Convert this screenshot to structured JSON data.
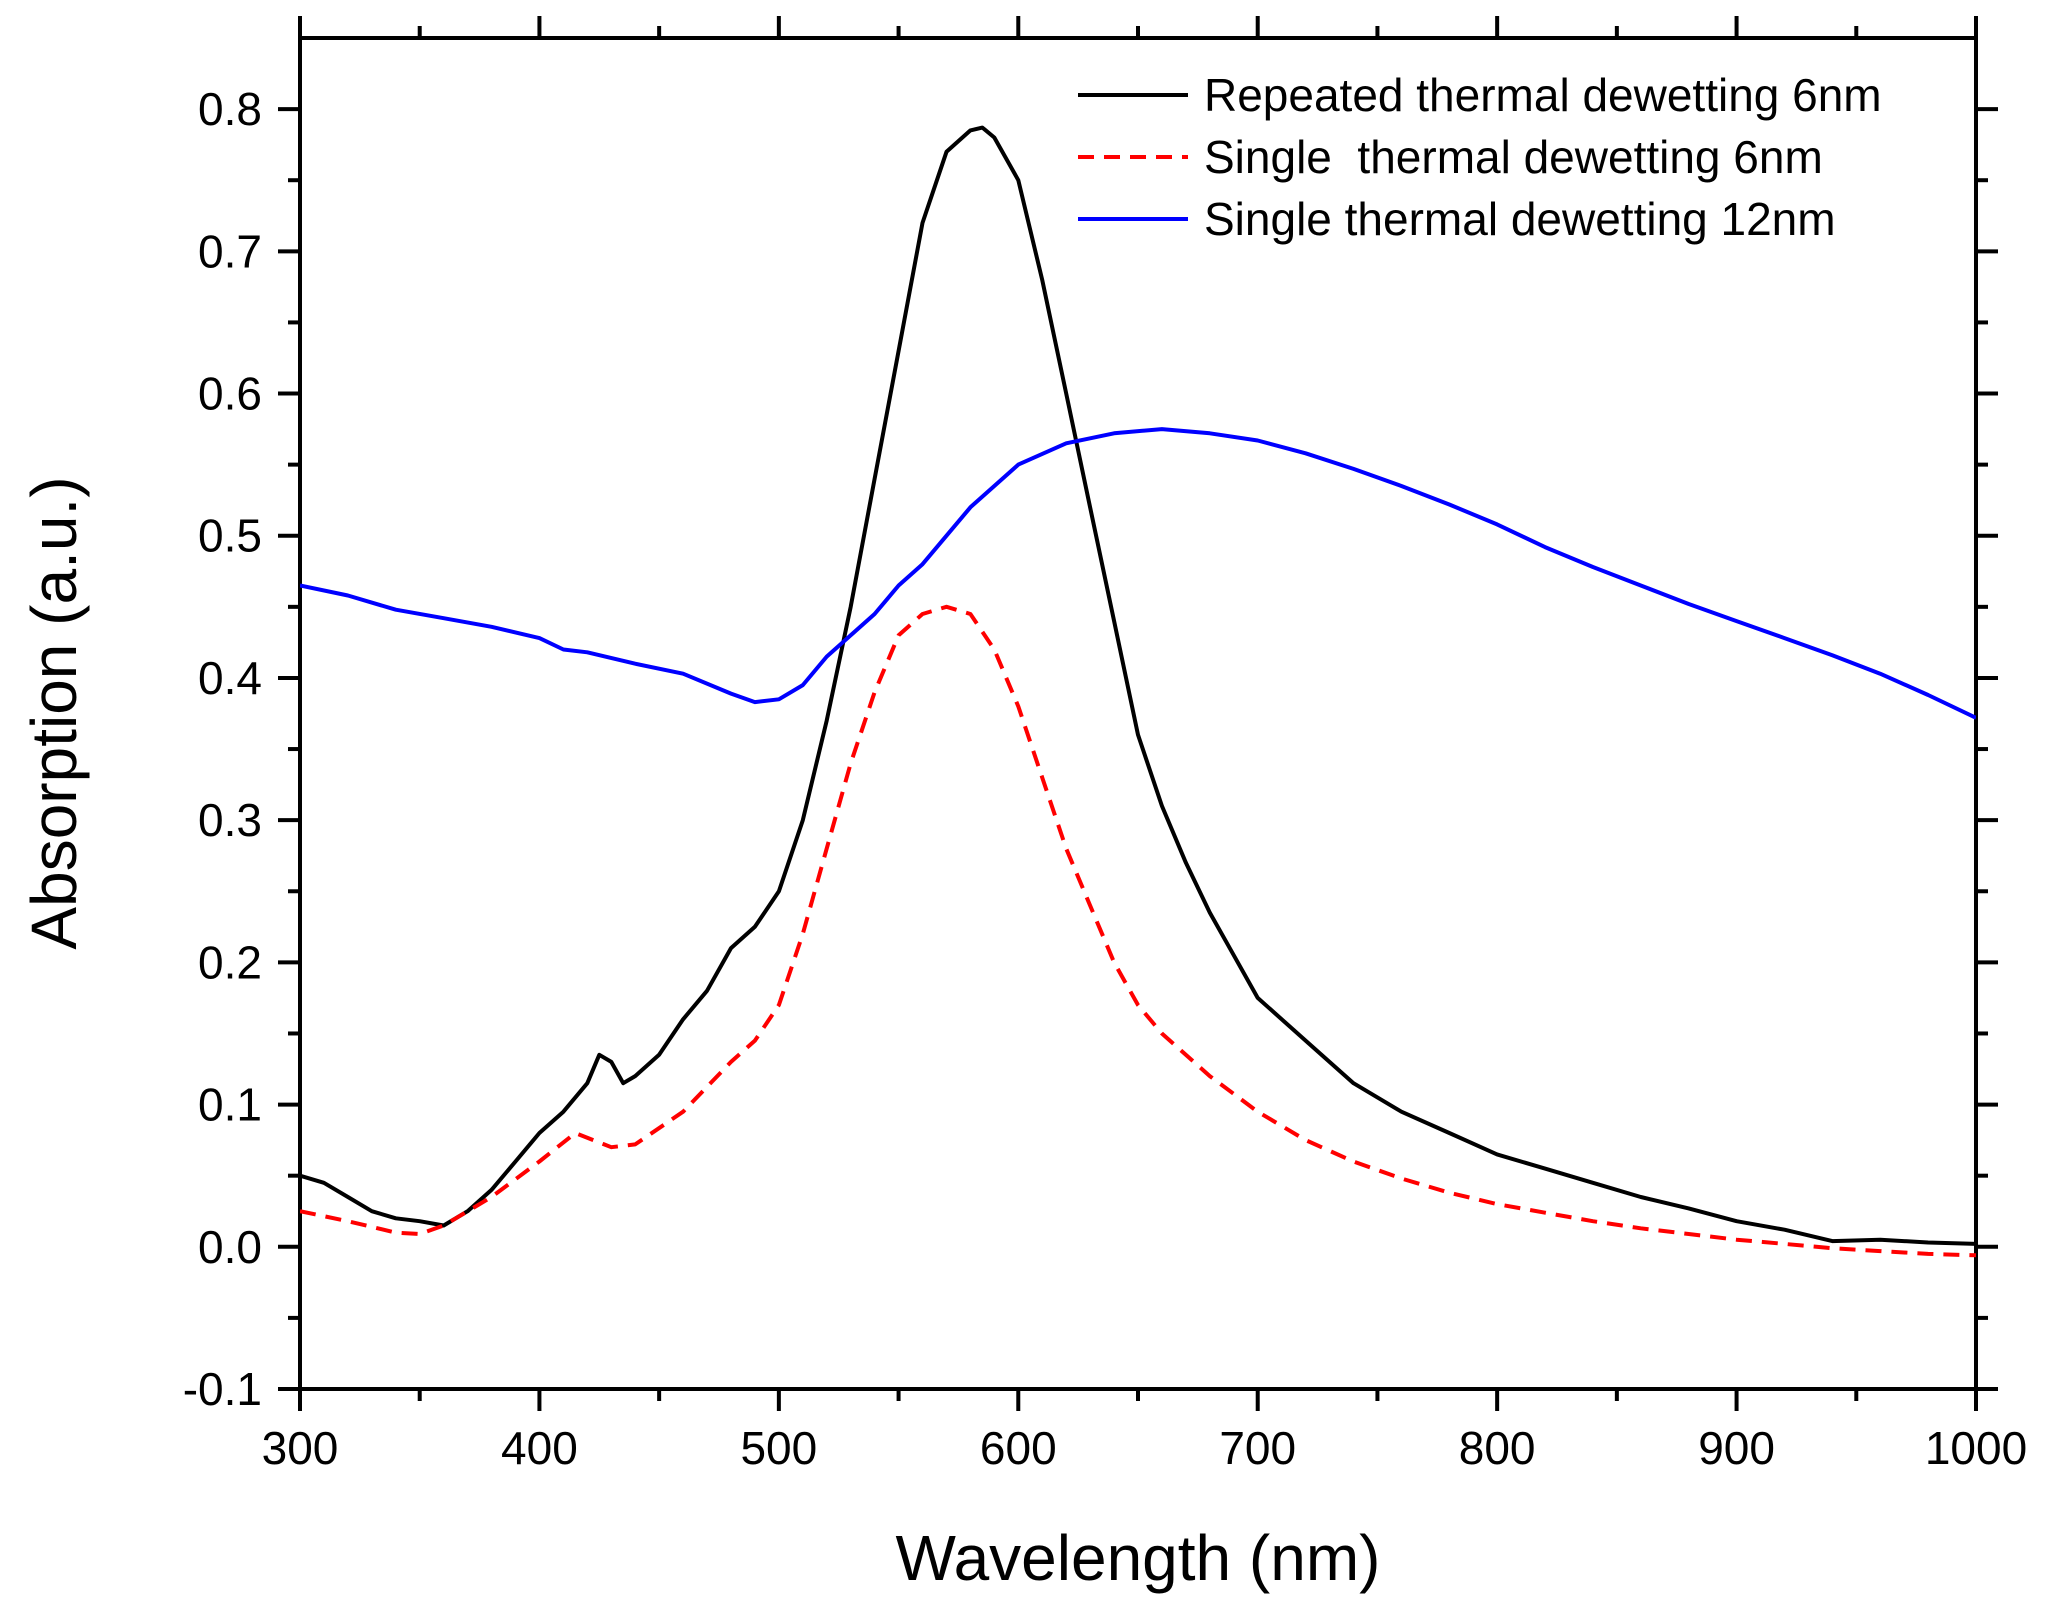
{
  "chart_data": {
    "type": "line",
    "title": "",
    "xlabel": "Wavelength (nm)",
    "ylabel": "Absorption (a.u.)",
    "xlim": [
      300,
      1000
    ],
    "ylim": [
      -0.1,
      0.85
    ],
    "x_ticks": [
      "300",
      "400",
      "500",
      "600",
      "700",
      "800",
      "900",
      "1000"
    ],
    "y_ticks": [
      "-0.1",
      "0.0",
      "0.1",
      "0.2",
      "0.3",
      "0.4",
      "0.5",
      "0.6",
      "0.7",
      "0.8"
    ],
    "grid": false,
    "legend_position": "top-right",
    "series": [
      {
        "name": "Repeated thermal dewetting 6nm",
        "color": "#000000",
        "dash": "solid",
        "points": [
          [
            300,
            0.05
          ],
          [
            310,
            0.045
          ],
          [
            320,
            0.035
          ],
          [
            330,
            0.025
          ],
          [
            340,
            0.02
          ],
          [
            350,
            0.018
          ],
          [
            360,
            0.015
          ],
          [
            370,
            0.025
          ],
          [
            380,
            0.04
          ],
          [
            390,
            0.06
          ],
          [
            400,
            0.08
          ],
          [
            410,
            0.095
          ],
          [
            420,
            0.115
          ],
          [
            425,
            0.135
          ],
          [
            430,
            0.13
          ],
          [
            435,
            0.115
          ],
          [
            440,
            0.12
          ],
          [
            450,
            0.135
          ],
          [
            460,
            0.16
          ],
          [
            470,
            0.18
          ],
          [
            480,
            0.21
          ],
          [
            490,
            0.225
          ],
          [
            500,
            0.25
          ],
          [
            510,
            0.3
          ],
          [
            520,
            0.37
          ],
          [
            530,
            0.45
          ],
          [
            540,
            0.54
          ],
          [
            550,
            0.63
          ],
          [
            560,
            0.72
          ],
          [
            570,
            0.77
          ],
          [
            580,
            0.785
          ],
          [
            585,
            0.787
          ],
          [
            590,
            0.78
          ],
          [
            600,
            0.75
          ],
          [
            610,
            0.68
          ],
          [
            620,
            0.6
          ],
          [
            630,
            0.52
          ],
          [
            640,
            0.44
          ],
          [
            650,
            0.36
          ],
          [
            660,
            0.31
          ],
          [
            670,
            0.27
          ],
          [
            680,
            0.235
          ],
          [
            690,
            0.205
          ],
          [
            700,
            0.175
          ],
          [
            720,
            0.145
          ],
          [
            740,
            0.115
          ],
          [
            760,
            0.095
          ],
          [
            780,
            0.08
          ],
          [
            800,
            0.065
          ],
          [
            820,
            0.055
          ],
          [
            840,
            0.045
          ],
          [
            860,
            0.035
          ],
          [
            880,
            0.027
          ],
          [
            900,
            0.018
          ],
          [
            920,
            0.012
          ],
          [
            940,
            0.004
          ],
          [
            960,
            0.005
          ],
          [
            980,
            0.003
          ],
          [
            1000,
            0.002
          ]
        ]
      },
      {
        "name": "Single  thermal dewetting 6nm",
        "color": "#ff0000",
        "dash": "dashed",
        "points": [
          [
            300,
            0.025
          ],
          [
            320,
            0.018
          ],
          [
            340,
            0.01
          ],
          [
            350,
            0.009
          ],
          [
            360,
            0.015
          ],
          [
            380,
            0.035
          ],
          [
            400,
            0.06
          ],
          [
            415,
            0.08
          ],
          [
            430,
            0.07
          ],
          [
            440,
            0.072
          ],
          [
            460,
            0.095
          ],
          [
            480,
            0.13
          ],
          [
            490,
            0.145
          ],
          [
            500,
            0.17
          ],
          [
            510,
            0.22
          ],
          [
            520,
            0.28
          ],
          [
            530,
            0.34
          ],
          [
            540,
            0.39
          ],
          [
            550,
            0.43
          ],
          [
            560,
            0.445
          ],
          [
            570,
            0.45
          ],
          [
            580,
            0.445
          ],
          [
            590,
            0.42
          ],
          [
            600,
            0.38
          ],
          [
            610,
            0.33
          ],
          [
            620,
            0.28
          ],
          [
            630,
            0.24
          ],
          [
            640,
            0.2
          ],
          [
            650,
            0.17
          ],
          [
            660,
            0.15
          ],
          [
            680,
            0.12
          ],
          [
            700,
            0.095
          ],
          [
            720,
            0.075
          ],
          [
            740,
            0.06
          ],
          [
            760,
            0.048
          ],
          [
            780,
            0.038
          ],
          [
            800,
            0.03
          ],
          [
            820,
            0.024
          ],
          [
            840,
            0.018
          ],
          [
            860,
            0.013
          ],
          [
            880,
            0.009
          ],
          [
            900,
            0.005
          ],
          [
            920,
            0.002
          ],
          [
            940,
            -0.001
          ],
          [
            960,
            -0.003
          ],
          [
            980,
            -0.005
          ],
          [
            1000,
            -0.006
          ]
        ]
      },
      {
        "name": "Single thermal dewetting 12nm",
        "color": "#0000ff",
        "dash": "solid",
        "points": [
          [
            300,
            0.465
          ],
          [
            320,
            0.458
          ],
          [
            340,
            0.448
          ],
          [
            360,
            0.442
          ],
          [
            380,
            0.436
          ],
          [
            400,
            0.428
          ],
          [
            410,
            0.42
          ],
          [
            420,
            0.418
          ],
          [
            440,
            0.41
          ],
          [
            460,
            0.403
          ],
          [
            480,
            0.389
          ],
          [
            490,
            0.383
          ],
          [
            500,
            0.385
          ],
          [
            510,
            0.395
          ],
          [
            520,
            0.415
          ],
          [
            530,
            0.43
          ],
          [
            540,
            0.445
          ],
          [
            550,
            0.465
          ],
          [
            560,
            0.48
          ],
          [
            570,
            0.5
          ],
          [
            580,
            0.52
          ],
          [
            590,
            0.535
          ],
          [
            600,
            0.55
          ],
          [
            620,
            0.565
          ],
          [
            640,
            0.572
          ],
          [
            660,
            0.575
          ],
          [
            680,
            0.572
          ],
          [
            700,
            0.567
          ],
          [
            720,
            0.558
          ],
          [
            740,
            0.547
          ],
          [
            760,
            0.535
          ],
          [
            780,
            0.522
          ],
          [
            800,
            0.508
          ],
          [
            820,
            0.492
          ],
          [
            840,
            0.478
          ],
          [
            860,
            0.465
          ],
          [
            880,
            0.452
          ],
          [
            900,
            0.44
          ],
          [
            920,
            0.428
          ],
          [
            940,
            0.416
          ],
          [
            960,
            0.403
          ],
          [
            980,
            0.388
          ],
          [
            1000,
            0.372
          ]
        ]
      }
    ]
  }
}
